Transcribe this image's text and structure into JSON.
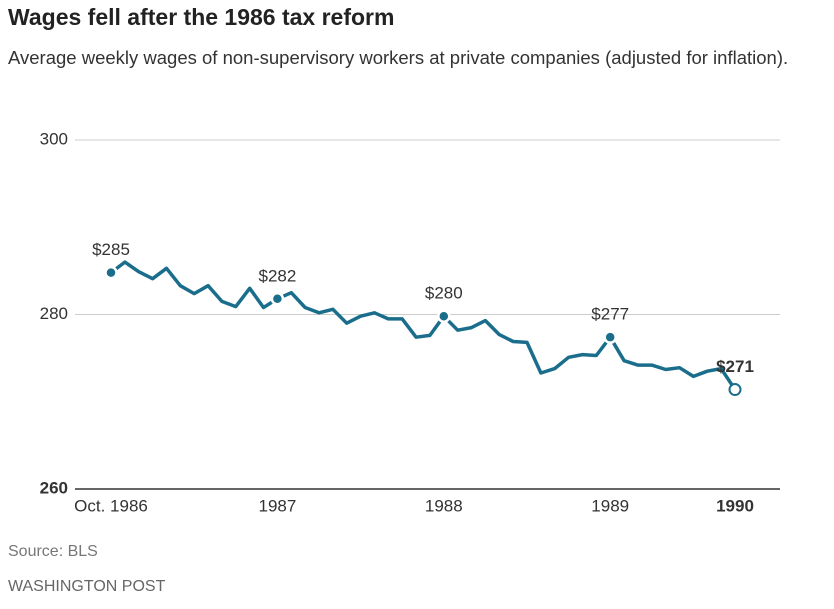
{
  "chart_data": {
    "type": "line",
    "title": "Wages fell after the 1986 tax reform",
    "subtitle": "Average weekly wages of non-supervisory workers at private companies (adjusted for inflation).",
    "source": "Source: BLS",
    "credit": "WASHINGTON POST",
    "categories": [
      "Oct. 1986",
      null,
      null,
      null,
      null,
      null,
      null,
      null,
      null,
      null,
      null,
      null,
      "1987",
      null,
      null,
      null,
      null,
      null,
      null,
      null,
      null,
      null,
      null,
      null,
      "1988",
      null,
      null,
      null,
      null,
      null,
      null,
      null,
      null,
      null,
      null,
      null,
      "1989",
      null,
      null,
      null,
      null,
      null,
      null,
      null,
      null,
      "1990"
    ],
    "series": [
      {
        "name": "Average weekly wages",
        "color": "#1a6e8c",
        "values": [
          284.8,
          286.0,
          284.9,
          284.1,
          285.3,
          283.3,
          282.4,
          283.3,
          281.5,
          280.9,
          283.0,
          280.8,
          281.8,
          282.5,
          280.8,
          280.2,
          280.6,
          279.0,
          279.8,
          280.2,
          279.5,
          279.5,
          277.4,
          277.6,
          279.8,
          278.2,
          278.5,
          279.3,
          277.7,
          276.9,
          276.8,
          273.3,
          273.8,
          275.1,
          275.4,
          275.3,
          277.4,
          274.7,
          274.2,
          274.2,
          273.7,
          273.9,
          272.9,
          273.5,
          273.8,
          271.4
        ],
        "value_labels": [
          "$285",
          null,
          null,
          null,
          null,
          null,
          null,
          null,
          null,
          null,
          null,
          null,
          "$282",
          null,
          null,
          null,
          null,
          null,
          null,
          null,
          null,
          null,
          null,
          null,
          "$280",
          null,
          null,
          null,
          null,
          null,
          null,
          null,
          null,
          null,
          null,
          null,
          "$277",
          null,
          null,
          null,
          null,
          null,
          null,
          null,
          null,
          "$271"
        ]
      }
    ],
    "ylim": [
      260,
      300
    ],
    "yticks": [
      260,
      280,
      300
    ],
    "grid": true
  }
}
